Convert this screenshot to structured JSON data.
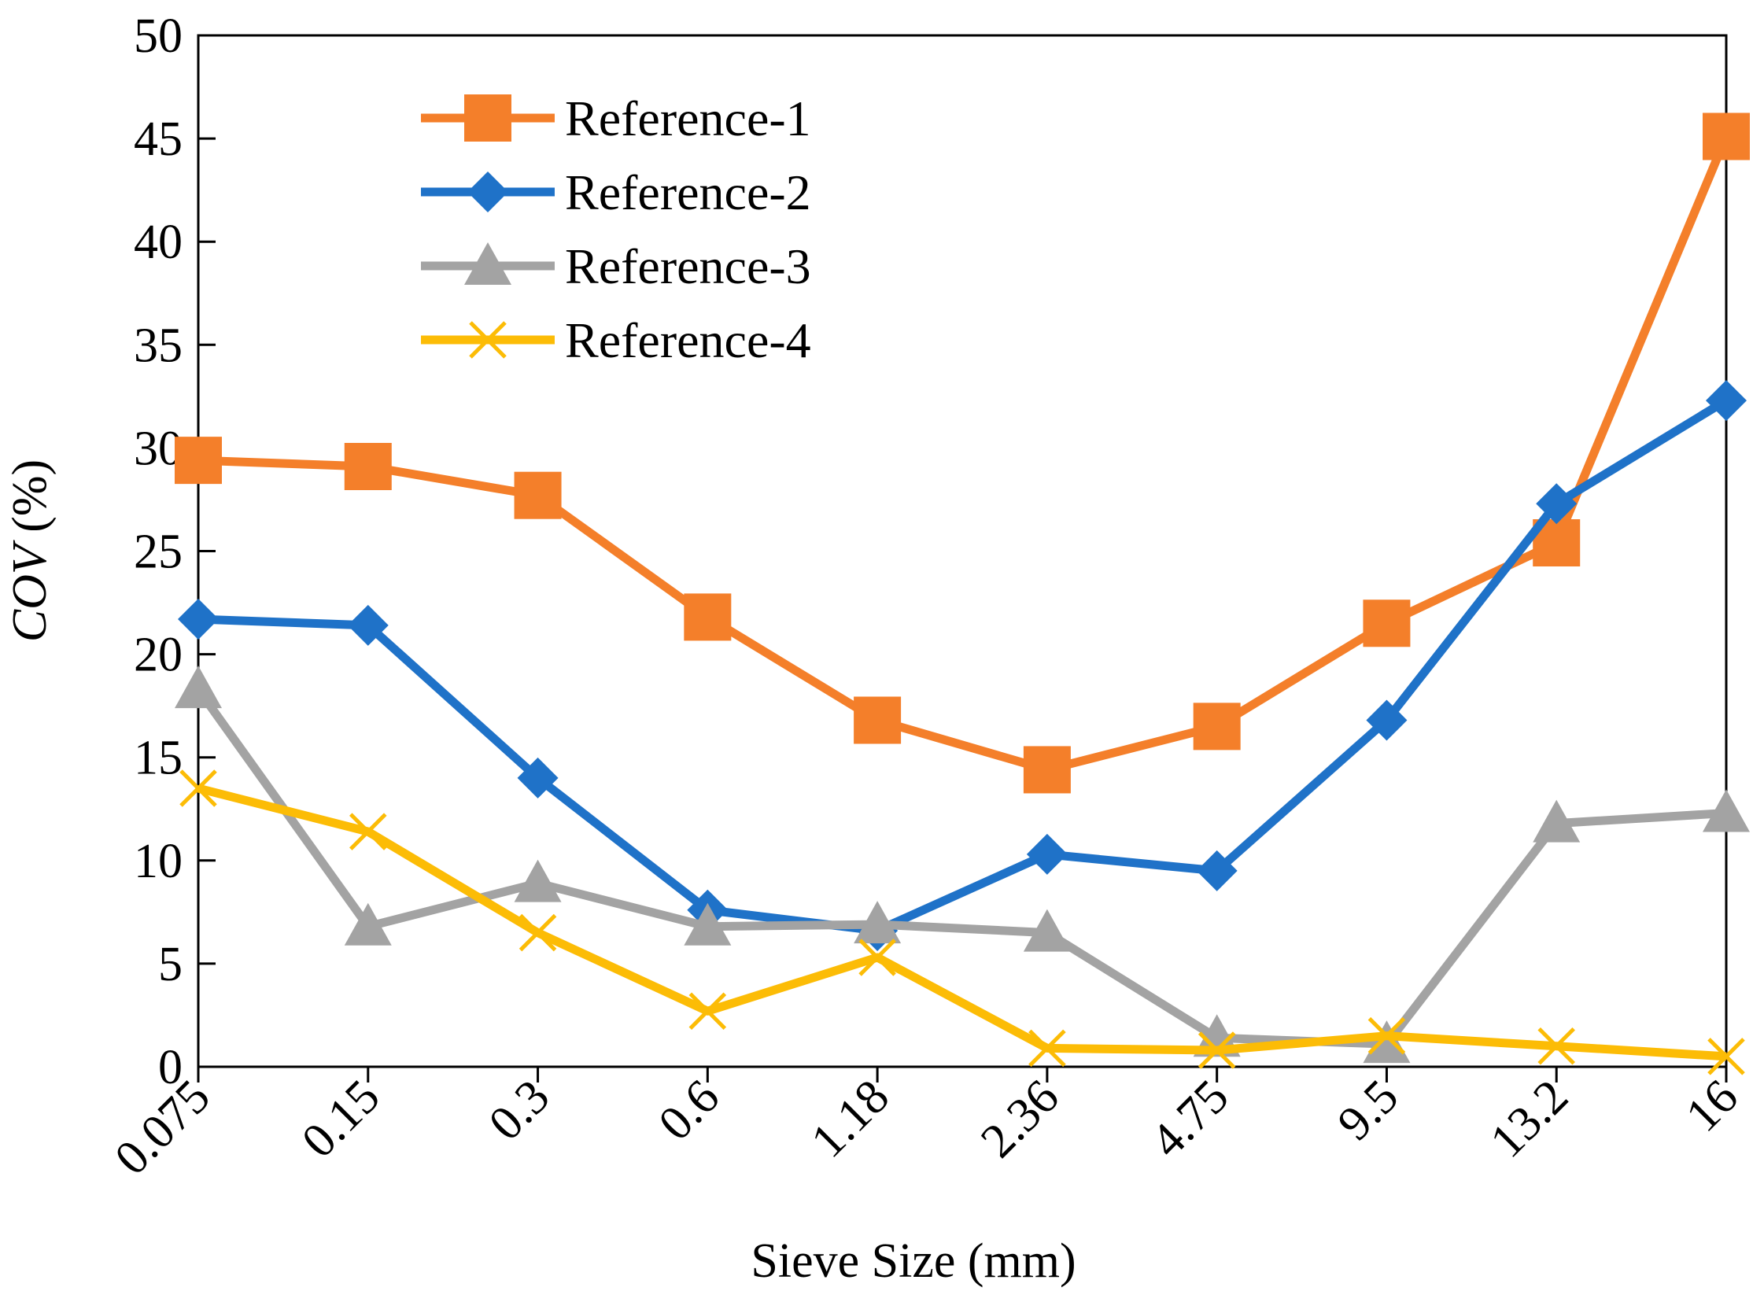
{
  "chart_data": {
    "type": "line",
    "categories": [
      "0.075",
      "0.15",
      "0.3",
      "0.6",
      "1.18",
      "2.36",
      "4.75",
      "9.5",
      "13.2",
      "16"
    ],
    "xlabel": "Sieve Size (mm)",
    "ylabel_italic": "COV",
    "ylabel_rest": " (%)",
    "ylim": [
      0,
      50
    ],
    "yticks": [
      0,
      5,
      10,
      15,
      20,
      25,
      30,
      35,
      40,
      45,
      50
    ],
    "grid": false,
    "legend_position": "top-left",
    "series": [
      {
        "name": "Reference-1",
        "color": "#f47f2a",
        "marker": "square",
        "values": [
          29.4,
          29.1,
          27.7,
          21.8,
          16.8,
          14.4,
          16.5,
          21.5,
          25.4,
          45.1
        ]
      },
      {
        "name": "Reference-2",
        "color": "#1f72c8",
        "marker": "diamond",
        "values": [
          21.7,
          21.4,
          14.0,
          7.6,
          6.6,
          10.3,
          9.5,
          16.8,
          27.3,
          32.3
        ]
      },
      {
        "name": "Reference-3",
        "color": "#a3a3a3",
        "marker": "triangle",
        "values": [
          18.3,
          6.8,
          8.9,
          6.8,
          6.9,
          6.5,
          1.4,
          1.1,
          11.8,
          12.3
        ]
      },
      {
        "name": "Reference-4",
        "color": "#fcbc06",
        "marker": "x",
        "values": [
          13.5,
          11.4,
          6.5,
          2.7,
          5.3,
          0.9,
          0.8,
          1.5,
          1.0,
          0.5
        ]
      }
    ]
  }
}
